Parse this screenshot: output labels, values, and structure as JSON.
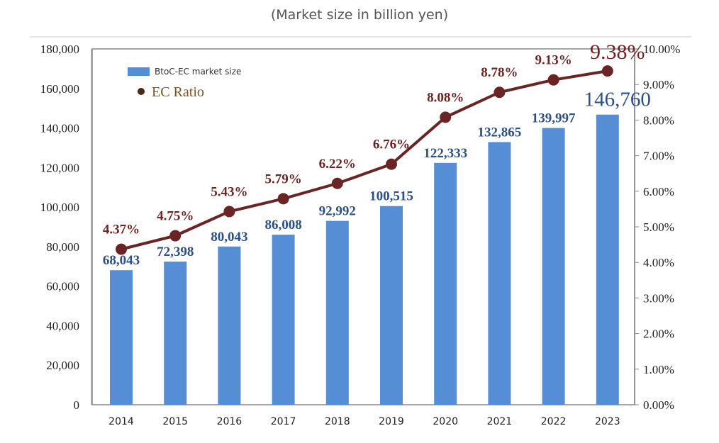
{
  "chart_data": {
    "type": "bar+line",
    "title": "(Market size in billion yen)",
    "categories": [
      "2014",
      "2015",
      "2016",
      "2017",
      "2018",
      "2019",
      "2020",
      "2021",
      "2022",
      "2023"
    ],
    "series": [
      {
        "name": "BtoC-EC market size",
        "type": "bar",
        "axis": "left",
        "color": "#558ed5",
        "values": [
          68043,
          72398,
          80043,
          86008,
          92992,
          100515,
          122333,
          132865,
          139997,
          146760
        ],
        "labels": [
          "68,043",
          "72,398",
          "80,043",
          "86,008",
          "92,992",
          "100,515",
          "122,333",
          "132,865",
          "139,997",
          "146,760"
        ]
      },
      {
        "name": "EC Ratio",
        "type": "line",
        "axis": "right",
        "color": "#6b2424",
        "values": [
          4.37,
          4.75,
          5.43,
          5.79,
          6.22,
          6.76,
          8.08,
          8.78,
          9.13,
          9.38
        ],
        "labels": [
          "4.37%",
          "4.75%",
          "5.43%",
          "5.79%",
          "6.22%",
          "6.76%",
          "8.08%",
          "8.78%",
          "9.13%",
          "9.38%"
        ]
      }
    ],
    "ylim_left": [
      0,
      180000
    ],
    "ylim_right": [
      0,
      10
    ],
    "yticks_left": [
      "0",
      "20,000",
      "40,000",
      "60,000",
      "80,000",
      "100,000",
      "120,000",
      "140,000",
      "160,000",
      "180,000"
    ],
    "yticks_right": [
      "0.00%",
      "1.00%",
      "2.00%",
      "3.00%",
      "4.00%",
      "5.00%",
      "6.00%",
      "7.00%",
      "8.00%",
      "9.00%",
      "10.00%"
    ],
    "grid": false,
    "legend": "top-left"
  }
}
